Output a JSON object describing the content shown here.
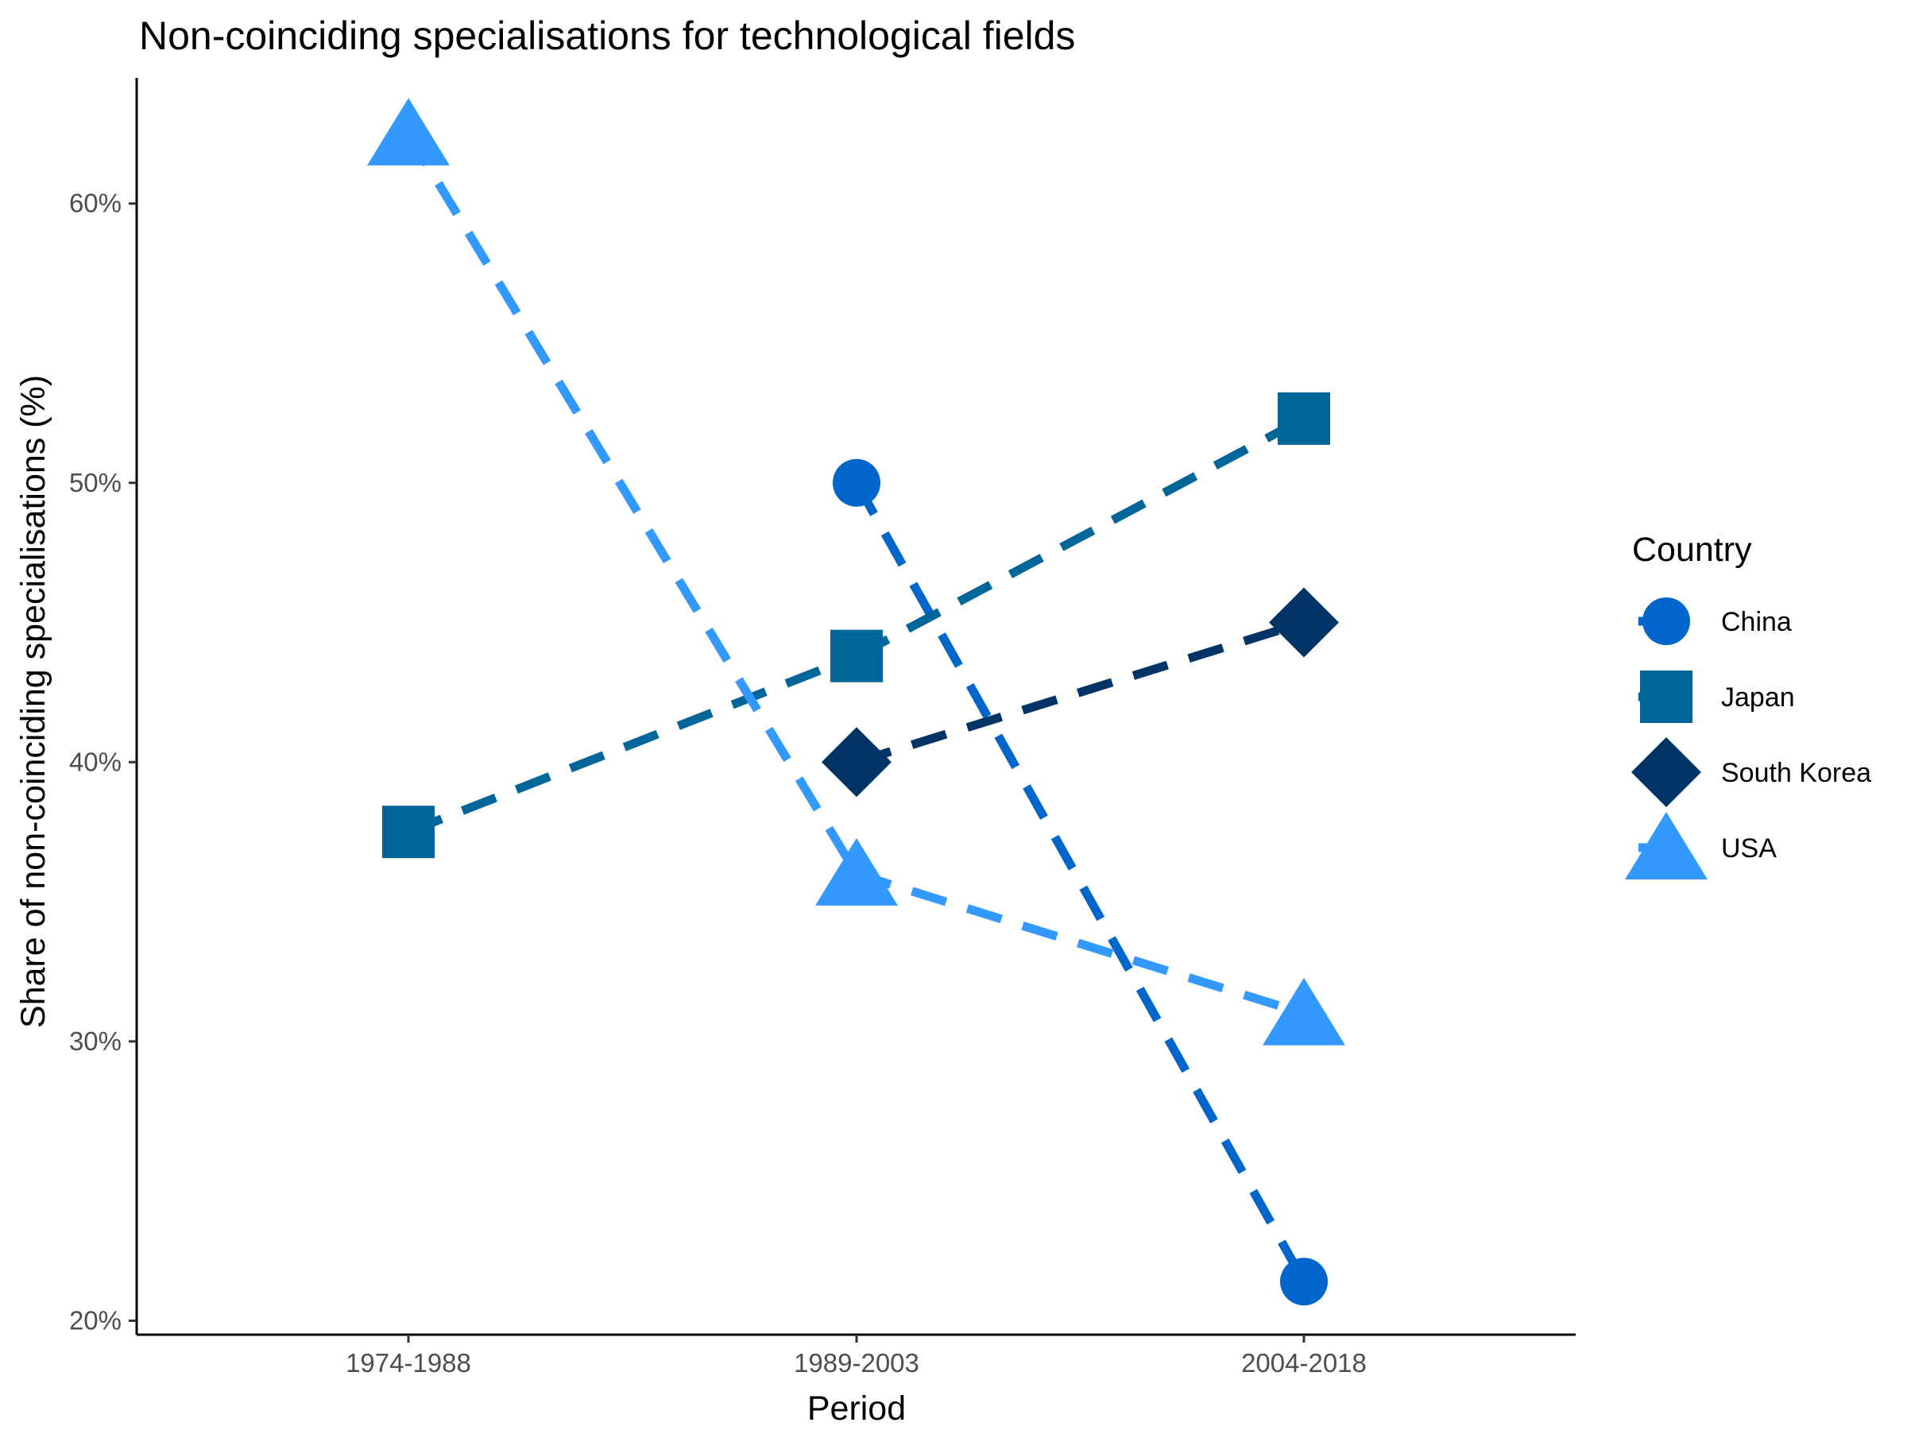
{
  "chart_data": {
    "type": "line",
    "title": "Non-coinciding specialisations for technological fields",
    "xlabel": "Period",
    "ylabel": "Share of non-coinciding specialisations (%)",
    "categories": [
      "1974-1988",
      "1989-2003",
      "2004-2018"
    ],
    "yticks": [
      20,
      30,
      40,
      50,
      60
    ],
    "ytick_labels": [
      "20%",
      "30%",
      "40%",
      "50%",
      "60%"
    ],
    "ylim": [
      19.5,
      64.5
    ],
    "grid": false,
    "legend_title": "Country",
    "legend_position": "right",
    "series": [
      {
        "name": "China",
        "marker": "circle",
        "color": "#0066cc",
        "values": [
          null,
          50.0,
          21.4
        ]
      },
      {
        "name": "Japan",
        "marker": "square",
        "color": "#00669a",
        "values": [
          37.5,
          43.8,
          52.3
        ]
      },
      {
        "name": "South Korea",
        "marker": "diamond",
        "color": "#003366",
        "values": [
          null,
          40.0,
          45.0
        ]
      },
      {
        "name": "USA",
        "marker": "triangle",
        "color": "#3399ff",
        "values": [
          62.5,
          36.0,
          31.0
        ]
      }
    ]
  }
}
